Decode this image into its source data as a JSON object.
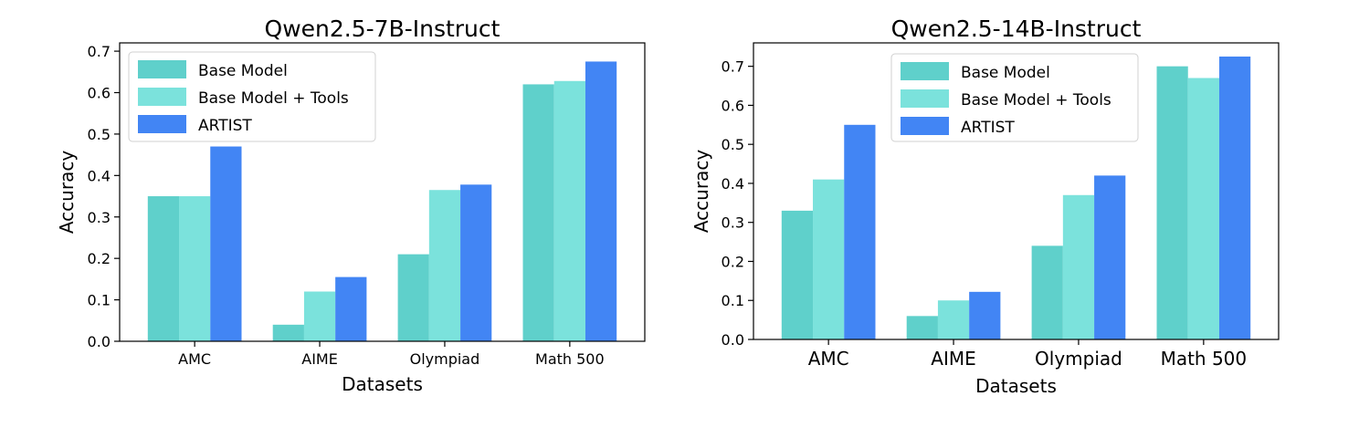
{
  "chart_data": [
    {
      "type": "bar",
      "title": "Qwen2.5-7B-Instruct",
      "xlabel": "Datasets",
      "ylabel": "Accuracy",
      "categories": [
        "AMC",
        "AIME",
        "Olympiad",
        "Math 500"
      ],
      "ylim": [
        0,
        0.72
      ],
      "yticks": [
        "0.0",
        "0.1",
        "0.2",
        "0.3",
        "0.4",
        "0.5",
        "0.6",
        "0.7"
      ],
      "legend_position": "top-left",
      "grid": false,
      "series": [
        {
          "name": "Base Model",
          "color": "#5fd0cb",
          "values": [
            0.35,
            0.04,
            0.21,
            0.62
          ]
        },
        {
          "name": "Base Model + Tools",
          "color": "#7be2dc",
          "values": [
            0.35,
            0.12,
            0.365,
            0.628
          ]
        },
        {
          "name": "ARTIST",
          "color": "#4285f4",
          "values": [
            0.47,
            0.155,
            0.378,
            0.675
          ]
        }
      ]
    },
    {
      "type": "bar",
      "title": "Qwen2.5-14B-Instruct",
      "xlabel": "Datasets",
      "ylabel": "Accuracy",
      "categories": [
        "AMC",
        "AIME",
        "Olympiad",
        "Math 500"
      ],
      "ylim": [
        0,
        0.76
      ],
      "yticks": [
        "0.0",
        "0.1",
        "0.2",
        "0.3",
        "0.4",
        "0.5",
        "0.6",
        "0.7"
      ],
      "legend_position": "top-center",
      "grid": false,
      "series": [
        {
          "name": "Base Model",
          "color": "#5fd0cb",
          "values": [
            0.33,
            0.06,
            0.24,
            0.7
          ]
        },
        {
          "name": "Base Model + Tools",
          "color": "#7be2dc",
          "values": [
            0.41,
            0.1,
            0.37,
            0.67
          ]
        },
        {
          "name": "ARTIST",
          "color": "#4285f4",
          "values": [
            0.55,
            0.122,
            0.42,
            0.725
          ]
        }
      ]
    }
  ]
}
